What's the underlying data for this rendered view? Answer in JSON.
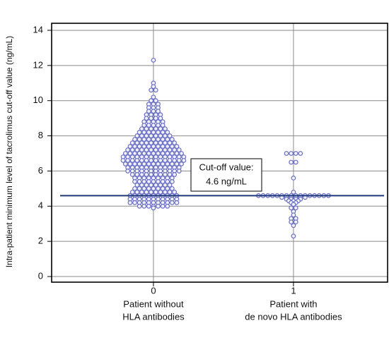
{
  "chart_data": {
    "type": "beeswarm",
    "y_label": "Intra-patient minimum level of tacrolimus cut-off value (ng/mL)",
    "xticks": [
      0,
      1
    ],
    "xtick_labels": [
      [
        "Patient without",
        "HLA antibodies"
      ],
      [
        "Patient with",
        "de novo HLA antibodies"
      ]
    ],
    "xlim": [
      -0.727,
      1.672
    ],
    "ylim": [
      -0.32,
      14.4
    ],
    "yticks": [
      0,
      2,
      4,
      6,
      8,
      10,
      12,
      14
    ],
    "grid": true,
    "color": "#6a6fc4",
    "cutoff": 4.6,
    "cutoff_color": "#1f3a7a",
    "annotation": [
      "Cut-off value:",
      "4.6 ng/mL"
    ],
    "series": [
      {
        "values": [
          12.3,
          11,
          10.8,
          10.6,
          10.6,
          10.2,
          10,
          10,
          9.8,
          9.8,
          9.8,
          9.6,
          9.6,
          9.6,
          9.4,
          9.4,
          9.4,
          9.2,
          9.2,
          9.2,
          9.2,
          9,
          9,
          9,
          9,
          8.8,
          8.8,
          8.8,
          8.8,
          8.8,
          8.6,
          8.6,
          8.6,
          8.6,
          8.6,
          8.4,
          8.4,
          8.4,
          8.4,
          8.4,
          8.4,
          8.2,
          8.2,
          8.2,
          8.2,
          8.2,
          8.2,
          8.2,
          8,
          8,
          8,
          8,
          8,
          8,
          8,
          8,
          7.8,
          7.8,
          7.8,
          7.8,
          7.8,
          7.8,
          7.8,
          7.8,
          7.8,
          7.6,
          7.6,
          7.6,
          7.6,
          7.6,
          7.6,
          7.6,
          7.6,
          7.6,
          7.6,
          7.4,
          7.4,
          7.4,
          7.4,
          7.4,
          7.4,
          7.4,
          7.4,
          7.4,
          7.4,
          7.4,
          7.2,
          7.2,
          7.2,
          7.2,
          7.2,
          7.2,
          7.2,
          7.2,
          7.2,
          7.2,
          7.2,
          7.2,
          7,
          7,
          7,
          7,
          7,
          7,
          7,
          7,
          7,
          7,
          7,
          7,
          7,
          6.8,
          6.8,
          6.8,
          6.8,
          6.8,
          6.8,
          6.8,
          6.8,
          6.8,
          6.8,
          6.8,
          6.8,
          6.8,
          6.8,
          6.6,
          6.6,
          6.6,
          6.6,
          6.6,
          6.6,
          6.6,
          6.6,
          6.6,
          6.6,
          6.6,
          6.6,
          6.6,
          6.6,
          6.4,
          6.4,
          6.4,
          6.4,
          6.4,
          6.4,
          6.4,
          6.4,
          6.4,
          6.4,
          6.4,
          6.4,
          6.4,
          6.2,
          6.2,
          6.2,
          6.2,
          6.2,
          6.2,
          6.2,
          6.2,
          6.2,
          6.2,
          6.2,
          6.2,
          6,
          6,
          6,
          6,
          6,
          6,
          6,
          6,
          6,
          6,
          6,
          6,
          5.8,
          5.8,
          5.8,
          5.8,
          5.8,
          5.8,
          5.8,
          5.8,
          5.8,
          5.8,
          5.6,
          5.6,
          5.6,
          5.6,
          5.6,
          5.6,
          5.6,
          5.6,
          5.6,
          5.4,
          5.4,
          5.4,
          5.4,
          5.4,
          5.4,
          5.4,
          5.4,
          5.4,
          5.2,
          5.2,
          5.2,
          5.2,
          5.2,
          5.2,
          5.2,
          5.2,
          5,
          5,
          5,
          5,
          5,
          5,
          5,
          5,
          5,
          4.8,
          4.8,
          4.8,
          4.8,
          4.8,
          4.8,
          4.8,
          4.8,
          4.8,
          4.8,
          4.6,
          4.6,
          4.6,
          4.6,
          4.6,
          4.6,
          4.6,
          4.6,
          4.6,
          4.6,
          4.6,
          4.4,
          4.4,
          4.4,
          4.4,
          4.4,
          4.4,
          4.4,
          4.4,
          4.4,
          4.4,
          4.4,
          4.2,
          4.2,
          4.2,
          4.2,
          4.2,
          4.2,
          4.2,
          4.2,
          4.2,
          4.2,
          4.2,
          4,
          4,
          4,
          4,
          4,
          4,
          4,
          3.9
        ]
      },
      {
        "values": [
          7,
          7,
          7,
          7,
          6.5,
          6.5,
          5.6,
          4.8,
          4.6,
          4.6,
          4.6,
          4.6,
          4.6,
          4.6,
          4.6,
          4.6,
          4.6,
          4.6,
          4.6,
          4.6,
          4.6,
          4.6,
          4.6,
          4.6,
          4.5,
          4.5,
          4.5,
          4.5,
          4.5,
          4.5,
          4.4,
          4.4,
          4.4,
          4.4,
          4.3,
          4.3,
          4.3,
          4.2,
          4.2,
          4.1,
          3.9,
          3.9,
          3.7,
          3.5,
          3.3,
          3.3,
          3.1,
          3.1,
          2.9,
          2.3
        ]
      }
    ]
  }
}
